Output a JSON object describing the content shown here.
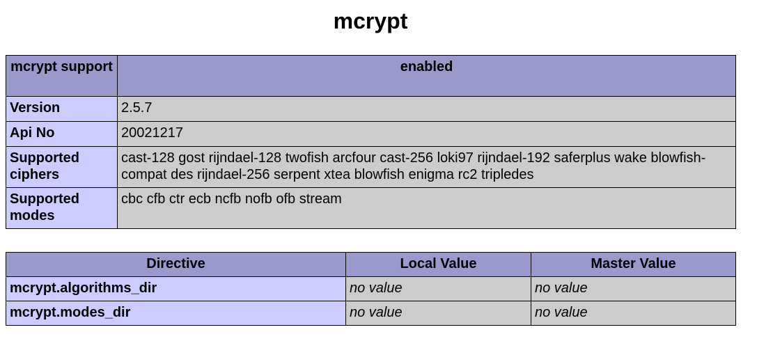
{
  "title": "mcrypt",
  "info_table": {
    "header": [
      "mcrypt support",
      "enabled"
    ],
    "rows": [
      {
        "label": "Version",
        "value": "2.5.7"
      },
      {
        "label": "Api No",
        "value": "20021217"
      },
      {
        "label": "Supported ciphers",
        "value": "cast-128 gost rijndael-128 twofish arcfour cast-256 loki97 rijndael-192 saferplus wake blowfish-compat des rijndael-256 serpent xtea blowfish enigma rc2 tripledes"
      },
      {
        "label": "Supported modes",
        "value": "cbc cfb ctr ecb ncfb nofb ofb stream"
      }
    ]
  },
  "directive_table": {
    "headers": [
      "Directive",
      "Local Value",
      "Master Value"
    ],
    "rows": [
      {
        "directive": "mcrypt.algorithms_dir",
        "local": "no value",
        "master": "no value"
      },
      {
        "directive": "mcrypt.modes_dir",
        "local": "no value",
        "master": "no value"
      }
    ]
  },
  "colors": {
    "header": "#9999cc",
    "label": "#ccccff",
    "value": "#cccccc"
  }
}
